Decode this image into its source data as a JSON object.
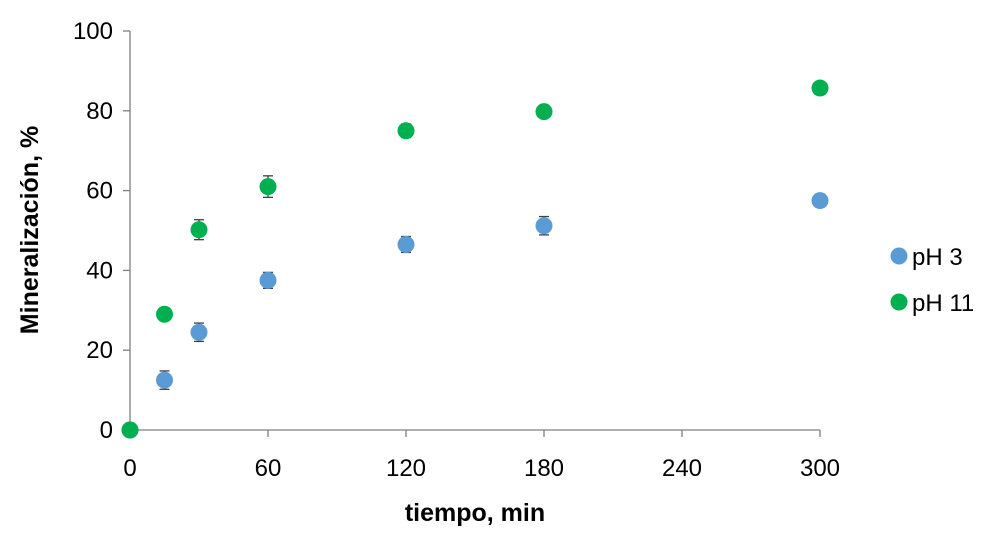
{
  "chart_data": {
    "type": "scatter",
    "title": "",
    "xlabel": "tiempo, min",
    "ylabel": "Mineralización, %",
    "xlim": [
      0,
      300
    ],
    "ylim": [
      0,
      100
    ],
    "x_ticks": [
      0,
      60,
      120,
      180,
      240,
      300
    ],
    "y_ticks": [
      0,
      20,
      40,
      60,
      80,
      100
    ],
    "x_tick_labels": [
      "0",
      "60",
      "120",
      "180",
      "240",
      "300"
    ],
    "y_tick_labels": [
      "0",
      "20",
      "40",
      "60",
      "80",
      "100"
    ],
    "grid": false,
    "legend_position": "right",
    "series": [
      {
        "name": "pH 3",
        "color": "#5b9bd5",
        "x": [
          0,
          15,
          30,
          60,
          120,
          180,
          300
        ],
        "y": [
          0,
          12.5,
          24.5,
          37.5,
          46.5,
          51.2,
          57.5
        ],
        "error": [
          0,
          2.3,
          2.3,
          2.0,
          2.0,
          2.3,
          1.6
        ]
      },
      {
        "name": "pH 11",
        "color": "#00b050",
        "x": [
          0,
          15,
          30,
          60,
          120,
          180,
          300
        ],
        "y": [
          0,
          29,
          50.2,
          61,
          75,
          79.8,
          85.7
        ],
        "error": [
          0,
          1.2,
          2.5,
          2.7,
          1.7,
          0,
          0
        ]
      }
    ]
  }
}
